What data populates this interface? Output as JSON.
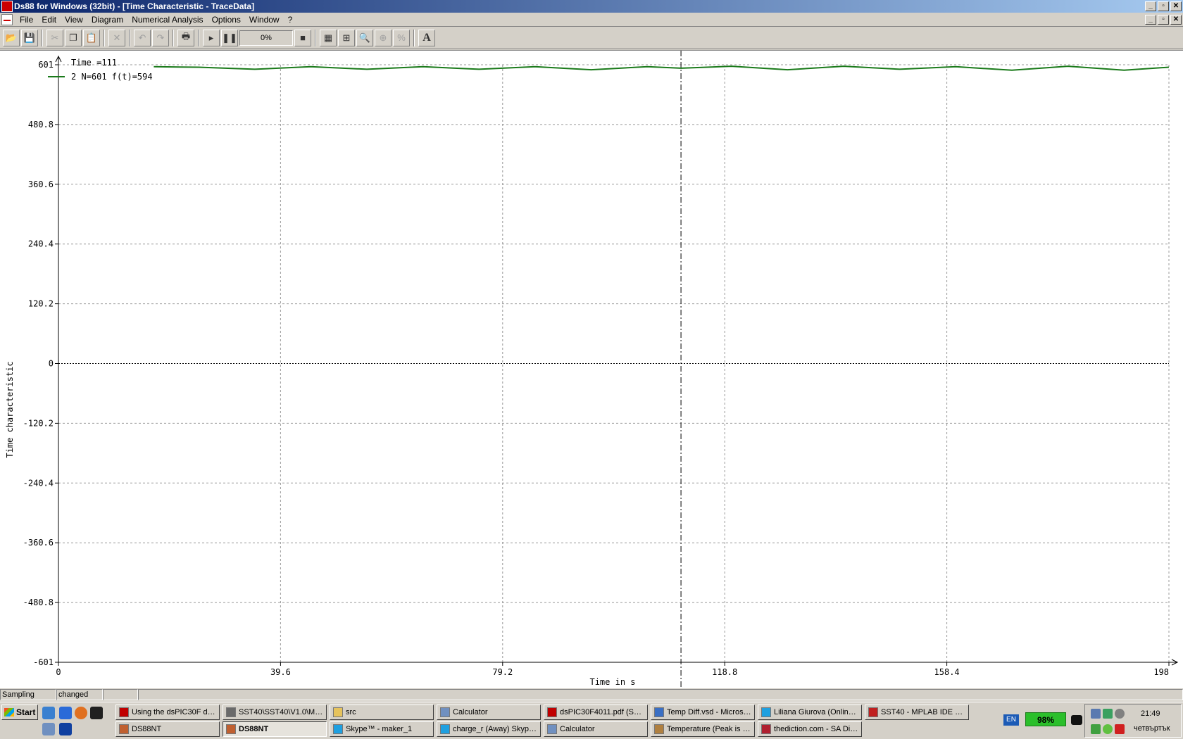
{
  "window": {
    "title": "Ds88 for Windows (32bit) - [Time Characteristic - TraceData]",
    "buttons": [
      "_",
      "▫",
      "✕"
    ]
  },
  "menu": {
    "items": [
      "File",
      "Edit",
      "View",
      "Diagram",
      "Numerical Analysis",
      "Options",
      "Window",
      "?"
    ]
  },
  "toolbar": {
    "progress": "0%",
    "icons": [
      "open-icon",
      "save-icon",
      "cut-icon",
      "copy-icon",
      "paste-icon",
      "delete-icon",
      "undo-icon",
      "redo-icon",
      "print-icon",
      "play-icon",
      "pause-icon",
      "stop-icon",
      "grid-icon",
      "axis-icon",
      "zoom-icon",
      "zoom-in-icon",
      "zoom-100-icon",
      "font-icon"
    ]
  },
  "chart_data": {
    "type": "line",
    "xlabel": "Time in s",
    "ylabel": "Time characteristic",
    "xlim": [
      0,
      198
    ],
    "ylim": [
      -601,
      601
    ],
    "x_ticks": [
      0,
      39.6,
      79.2,
      118.8,
      158.4,
      198
    ],
    "y_ticks": [
      601,
      480.8,
      360.6,
      240.4,
      120.2,
      0,
      -120.2,
      -240.4,
      -360.6,
      -480.8,
      -601
    ],
    "x_tick_labels": [
      "0",
      "39.6",
      "79.2",
      "118.8",
      "158.4",
      "198"
    ],
    "y_tick_labels": [
      "601",
      "480.8",
      "360.6",
      "240.4",
      "120.2",
      "0",
      "-120.2",
      "-240.4",
      "-360.6",
      "-480.8",
      "-601"
    ],
    "grid": true,
    "cursor_x": 111,
    "legend": {
      "placement": "top-left",
      "time_text": "Time  =111",
      "series_text": "2 N=601 f(t)=594"
    },
    "series": [
      {
        "color": "#1a7a1a",
        "x": [
          17,
          25,
          35,
          45,
          55,
          65,
          75,
          85,
          95,
          105,
          111,
          120,
          130,
          140,
          150,
          160,
          170,
          180,
          190,
          198
        ],
        "y": [
          597,
          596,
          592,
          597,
          592,
          597,
          592,
          597,
          591,
          597,
          594,
          598,
          591,
          598,
          592,
          597,
          590,
          598,
          590,
          596
        ]
      }
    ]
  },
  "status": {
    "field1": "Sampling",
    "field2": "changed",
    "field3": "",
    "field4": ""
  },
  "taskbar": {
    "start_label": "Start",
    "row1": [
      {
        "label": "Using the dsPIC30F  ds...",
        "icon_color": "#c00000"
      },
      {
        "label": "SST40\\SST40\\V1.0\\Mas...",
        "icon_color": "#6a6a6a"
      },
      {
        "label": "src",
        "icon_color": "#e6c35c"
      },
      {
        "label": "Calculator",
        "icon_color": "#7090c0"
      },
      {
        "label": "dsPIC30F4011.pdf (SE...",
        "icon_color": "#c00000"
      },
      {
        "label": "Temp Diff.vsd - Microso...",
        "icon_color": "#3a6fc4"
      },
      {
        "label": "Liliana Giurova (Online) ...",
        "icon_color": "#1fa0e0"
      },
      {
        "label": "SST40 - MPLAB IDE v8....",
        "icon_color": "#c02020"
      }
    ],
    "row2": [
      {
        "label": "DS88NT",
        "icon_color": "#c06030",
        "active": false
      },
      {
        "label": "DS88NT",
        "icon_color": "#c06030",
        "active": true
      },
      {
        "label": "Skype™ - maker_1",
        "icon_color": "#1fa0e0",
        "active": false
      },
      {
        "label": "charge_r (Away) Skype...",
        "icon_color": "#1fa0e0",
        "active": false
      },
      {
        "label": "Calculator",
        "icon_color": "#7090c0",
        "active": false
      },
      {
        "label": "Temperature (Peak is S...",
        "icon_color": "#b08040",
        "active": false
      },
      {
        "label": "thediction.com - SA Dict...",
        "icon_color": "#b02030",
        "active": false
      }
    ],
    "lang": "EN",
    "battery": "98%",
    "clock": "21:49",
    "day": "четвъртък"
  }
}
